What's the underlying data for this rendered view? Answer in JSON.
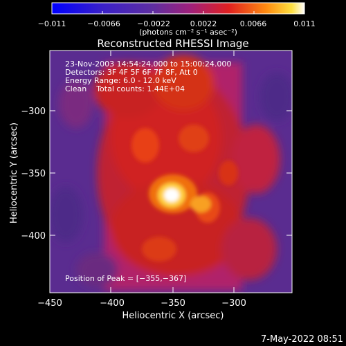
{
  "colorbar": {
    "ticks": [
      "−0.011",
      "−0.0066",
      "−0.0022",
      "0.0022",
      "0.0066",
      "0.011"
    ],
    "units": "(photons cm⁻² s⁻¹ asec⁻²)"
  },
  "title": "Reconstructed RHESSI Image",
  "info": {
    "line1": "23-Nov-2003 14:54:24.000 to 15:00:24.000",
    "line2": "Detectors: 3F 4F 5F 6F 7F 8F, Att 0",
    "line3": "Energy Range: 6.0 - 12.0 keV",
    "line4": "Clean    Total counts: 1.44E+04"
  },
  "peak_label": "Position of Peak = [−355,−367]",
  "axes": {
    "xlabel": "Heliocentric X (arcsec)",
    "ylabel": "Heliocentric Y (arcsec)",
    "xticks": [
      "−450",
      "−400",
      "−350",
      "−300"
    ],
    "yticks": [
      "−300",
      "−350",
      "−400"
    ]
  },
  "footer_date": "7-May-2022 08:51",
  "colors": {
    "background": "#000000",
    "low": "#6a2fa0",
    "mid": "#c02020",
    "high": "#ffffff"
  }
}
